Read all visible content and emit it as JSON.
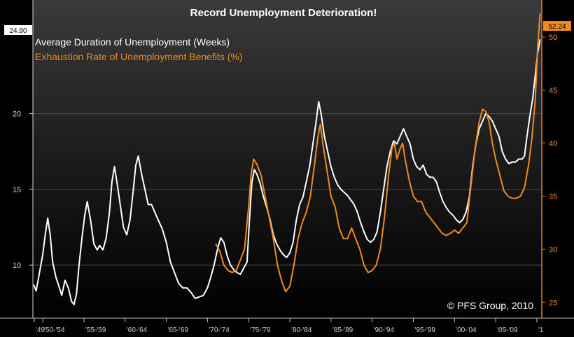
{
  "chart_data": {
    "type": "line",
    "title": "Record Unemployment Deterioration!",
    "copyright": "© PFS Group, 2010",
    "x_ticks": [
      "'49",
      "'50-'54",
      "'55-'59",
      "'60-'64",
      "'65-'69",
      "'70-'74",
      "'75-'79",
      "'80-'84",
      "'85-'89",
      "'90-'94",
      "'95-'99",
      "'00-'04",
      "'05-'09",
      "'1"
    ],
    "x_range": [
      1948.8,
      2010.6
    ],
    "y_left": {
      "ticks": [
        10,
        15,
        20
      ],
      "range": [
        6.5,
        27.5
      ],
      "last_value_label": "24.90"
    },
    "y_right": {
      "ticks": [
        25,
        30,
        35,
        40,
        45,
        50
      ],
      "range": [
        23.5,
        53.5
      ],
      "last_value_label": "52.24"
    },
    "series": [
      {
        "name": "Average Duration of Unemployment (Weeks)",
        "color": "#ffffff",
        "axis": "left",
        "points": [
          [
            1948.9,
            8.7
          ],
          [
            1949.2,
            8.3
          ],
          [
            1949.6,
            9.5
          ],
          [
            1950.0,
            10.7
          ],
          [
            1950.3,
            12.0
          ],
          [
            1950.6,
            13.1
          ],
          [
            1950.9,
            12.0
          ],
          [
            1951.2,
            10.2
          ],
          [
            1951.6,
            9.2
          ],
          [
            1951.9,
            8.7
          ],
          [
            1952.3,
            8.0
          ],
          [
            1952.7,
            9.0
          ],
          [
            1953.1,
            8.5
          ],
          [
            1953.5,
            7.6
          ],
          [
            1953.8,
            7.4
          ],
          [
            1954.1,
            8.1
          ],
          [
            1954.4,
            10.0
          ],
          [
            1954.8,
            12.0
          ],
          [
            1955.1,
            13.3
          ],
          [
            1955.4,
            14.2
          ],
          [
            1955.8,
            13.0
          ],
          [
            1956.2,
            11.4
          ],
          [
            1956.6,
            11.0
          ],
          [
            1956.9,
            11.3
          ],
          [
            1957.3,
            11.0
          ],
          [
            1957.7,
            11.8
          ],
          [
            1958.1,
            13.5
          ],
          [
            1958.4,
            15.5
          ],
          [
            1958.7,
            16.5
          ],
          [
            1959.0,
            15.5
          ],
          [
            1959.4,
            14.0
          ],
          [
            1959.8,
            12.5
          ],
          [
            1960.2,
            12.0
          ],
          [
            1960.6,
            13.0
          ],
          [
            1961.0,
            15.0
          ],
          [
            1961.3,
            16.6
          ],
          [
            1961.6,
            17.2
          ],
          [
            1962.0,
            16.0
          ],
          [
            1962.4,
            15.0
          ],
          [
            1962.8,
            14.0
          ],
          [
            1963.2,
            14.0
          ],
          [
            1963.6,
            13.5
          ],
          [
            1964.0,
            13.0
          ],
          [
            1964.5,
            12.4
          ],
          [
            1965.0,
            11.5
          ],
          [
            1965.5,
            10.2
          ],
          [
            1966.0,
            9.5
          ],
          [
            1966.5,
            8.8
          ],
          [
            1967.0,
            8.5
          ],
          [
            1967.5,
            8.5
          ],
          [
            1968.0,
            8.2
          ],
          [
            1968.5,
            7.8
          ],
          [
            1969.0,
            7.9
          ],
          [
            1969.5,
            8.0
          ],
          [
            1970.0,
            8.5
          ],
          [
            1970.4,
            9.2
          ],
          [
            1970.8,
            10.0
          ],
          [
            1971.2,
            11.0
          ],
          [
            1971.6,
            11.8
          ],
          [
            1972.0,
            11.5
          ],
          [
            1972.4,
            10.6
          ],
          [
            1972.8,
            10.0
          ],
          [
            1973.2,
            9.7
          ],
          [
            1973.6,
            9.5
          ],
          [
            1974.0,
            9.4
          ],
          [
            1974.4,
            9.8
          ],
          [
            1974.8,
            10.2
          ],
          [
            1975.1,
            13.0
          ],
          [
            1975.4,
            15.5
          ],
          [
            1975.7,
            16.3
          ],
          [
            1976.0,
            16.0
          ],
          [
            1976.4,
            15.4
          ],
          [
            1976.8,
            14.5
          ],
          [
            1977.2,
            13.8
          ],
          [
            1977.6,
            13.0
          ],
          [
            1978.0,
            12.0
          ],
          [
            1978.4,
            11.4
          ],
          [
            1978.8,
            11.0
          ],
          [
            1979.2,
            10.7
          ],
          [
            1979.6,
            10.5
          ],
          [
            1980.0,
            10.8
          ],
          [
            1980.4,
            11.5
          ],
          [
            1980.8,
            13.0
          ],
          [
            1981.2,
            14.0
          ],
          [
            1981.6,
            14.5
          ],
          [
            1982.0,
            15.5
          ],
          [
            1982.4,
            16.5
          ],
          [
            1982.8,
            18.0
          ],
          [
            1983.2,
            19.5
          ],
          [
            1983.5,
            20.8
          ],
          [
            1983.8,
            20.0
          ],
          [
            1984.2,
            18.5
          ],
          [
            1984.6,
            17.5
          ],
          [
            1985.0,
            16.5
          ],
          [
            1985.4,
            15.8
          ],
          [
            1985.8,
            15.3
          ],
          [
            1986.2,
            15.0
          ],
          [
            1986.6,
            14.8
          ],
          [
            1987.0,
            14.6
          ],
          [
            1987.4,
            14.3
          ],
          [
            1987.8,
            14.0
          ],
          [
            1988.2,
            13.5
          ],
          [
            1988.6,
            12.8
          ],
          [
            1989.0,
            12.2
          ],
          [
            1989.4,
            11.7
          ],
          [
            1989.8,
            11.5
          ],
          [
            1990.2,
            11.7
          ],
          [
            1990.6,
            12.2
          ],
          [
            1991.0,
            13.5
          ],
          [
            1991.4,
            15.0
          ],
          [
            1991.8,
            16.5
          ],
          [
            1992.2,
            17.5
          ],
          [
            1992.6,
            18.2
          ],
          [
            1993.0,
            18.0
          ],
          [
            1993.4,
            18.5
          ],
          [
            1993.8,
            19.0
          ],
          [
            1994.2,
            18.5
          ],
          [
            1994.6,
            18.0
          ],
          [
            1995.0,
            17.0
          ],
          [
            1995.4,
            16.5
          ],
          [
            1995.8,
            16.3
          ],
          [
            1996.2,
            16.6
          ],
          [
            1996.6,
            16.0
          ],
          [
            1997.0,
            15.8
          ],
          [
            1997.4,
            15.8
          ],
          [
            1997.8,
            15.5
          ],
          [
            1998.2,
            14.8
          ],
          [
            1998.6,
            14.2
          ],
          [
            1999.0,
            13.8
          ],
          [
            1999.4,
            13.5
          ],
          [
            1999.8,
            13.3
          ],
          [
            2000.2,
            13.0
          ],
          [
            2000.6,
            12.8
          ],
          [
            2001.0,
            13.0
          ],
          [
            2001.4,
            13.5
          ],
          [
            2001.8,
            14.5
          ],
          [
            2002.2,
            16.5
          ],
          [
            2002.6,
            18.0
          ],
          [
            2003.0,
            19.0
          ],
          [
            2003.4,
            19.5
          ],
          [
            2003.8,
            20.0
          ],
          [
            2004.2,
            19.8
          ],
          [
            2004.6,
            19.5
          ],
          [
            2005.0,
            19.0
          ],
          [
            2005.4,
            18.5
          ],
          [
            2005.8,
            17.5
          ],
          [
            2006.2,
            17.0
          ],
          [
            2006.6,
            16.7
          ],
          [
            2007.0,
            16.8
          ],
          [
            2007.4,
            16.8
          ],
          [
            2007.8,
            17.0
          ],
          [
            2008.2,
            17.0
          ],
          [
            2008.5,
            17.2
          ],
          [
            2008.8,
            18.5
          ],
          [
            2009.2,
            20.0
          ],
          [
            2009.5,
            21.0
          ],
          [
            2009.8,
            22.5
          ],
          [
            2010.1,
            24.0
          ],
          [
            2010.4,
            24.9
          ]
        ]
      },
      {
        "name": "Exhaustion Rate of Unemployment Benefits (%)",
        "color": "#f08a1e",
        "axis": "right",
        "points": [
          [
            1971.0,
            30.5
          ],
          [
            1971.5,
            29.8
          ],
          [
            1972.0,
            28.5
          ],
          [
            1972.5,
            28.0
          ],
          [
            1973.0,
            27.8
          ],
          [
            1973.5,
            28.0
          ],
          [
            1974.0,
            29.0
          ],
          [
            1974.5,
            30.0
          ],
          [
            1975.0,
            34.0
          ],
          [
            1975.3,
            37.0
          ],
          [
            1975.6,
            38.5
          ],
          [
            1976.0,
            38.0
          ],
          [
            1976.5,
            37.0
          ],
          [
            1977.0,
            35.0
          ],
          [
            1977.5,
            33.0
          ],
          [
            1978.0,
            31.0
          ],
          [
            1978.5,
            28.5
          ],
          [
            1979.0,
            27.0
          ],
          [
            1979.5,
            26.0
          ],
          [
            1980.0,
            26.5
          ],
          [
            1980.5,
            28.5
          ],
          [
            1981.0,
            31.0
          ],
          [
            1981.5,
            32.5
          ],
          [
            1982.0,
            33.5
          ],
          [
            1982.5,
            35.0
          ],
          [
            1983.0,
            38.0
          ],
          [
            1983.4,
            40.5
          ],
          [
            1983.7,
            41.8
          ],
          [
            1984.0,
            40.0
          ],
          [
            1984.5,
            37.5
          ],
          [
            1985.0,
            35.0
          ],
          [
            1985.5,
            34.0
          ],
          [
            1986.0,
            32.0
          ],
          [
            1986.5,
            31.0
          ],
          [
            1987.0,
            31.0
          ],
          [
            1987.5,
            32.0
          ],
          [
            1988.0,
            31.0
          ],
          [
            1988.5,
            30.0
          ],
          [
            1989.0,
            28.5
          ],
          [
            1989.5,
            27.8
          ],
          [
            1990.0,
            28.0
          ],
          [
            1990.5,
            28.5
          ],
          [
            1991.0,
            30.0
          ],
          [
            1991.5,
            33.0
          ],
          [
            1992.0,
            37.0
          ],
          [
            1992.4,
            39.5
          ],
          [
            1992.7,
            40.0
          ],
          [
            1993.0,
            38.5
          ],
          [
            1993.4,
            39.5
          ],
          [
            1993.7,
            40.0
          ],
          [
            1994.0,
            38.5
          ],
          [
            1994.5,
            36.5
          ],
          [
            1995.0,
            35.0
          ],
          [
            1995.5,
            34.5
          ],
          [
            1996.0,
            34.5
          ],
          [
            1996.5,
            33.5
          ],
          [
            1997.0,
            33.0
          ],
          [
            1997.5,
            32.5
          ],
          [
            1998.0,
            32.0
          ],
          [
            1998.5,
            31.5
          ],
          [
            1999.0,
            31.3
          ],
          [
            1999.5,
            31.5
          ],
          [
            2000.0,
            31.8
          ],
          [
            2000.5,
            31.5
          ],
          [
            2001.0,
            32.0
          ],
          [
            2001.5,
            32.5
          ],
          [
            2002.0,
            36.0
          ],
          [
            2002.5,
            39.5
          ],
          [
            2003.0,
            42.0
          ],
          [
            2003.4,
            43.2
          ],
          [
            2003.8,
            43.0
          ],
          [
            2004.2,
            42.0
          ],
          [
            2004.6,
            40.0
          ],
          [
            2005.0,
            38.5
          ],
          [
            2005.5,
            37.0
          ],
          [
            2006.0,
            35.5
          ],
          [
            2006.5,
            35.0
          ],
          [
            2007.0,
            34.8
          ],
          [
            2007.5,
            34.8
          ],
          [
            2008.0,
            35.0
          ],
          [
            2008.5,
            35.8
          ],
          [
            2009.0,
            38.0
          ],
          [
            2009.4,
            40.5
          ],
          [
            2009.8,
            44.0
          ],
          [
            2010.1,
            49.0
          ],
          [
            2010.4,
            52.24
          ]
        ]
      }
    ]
  }
}
